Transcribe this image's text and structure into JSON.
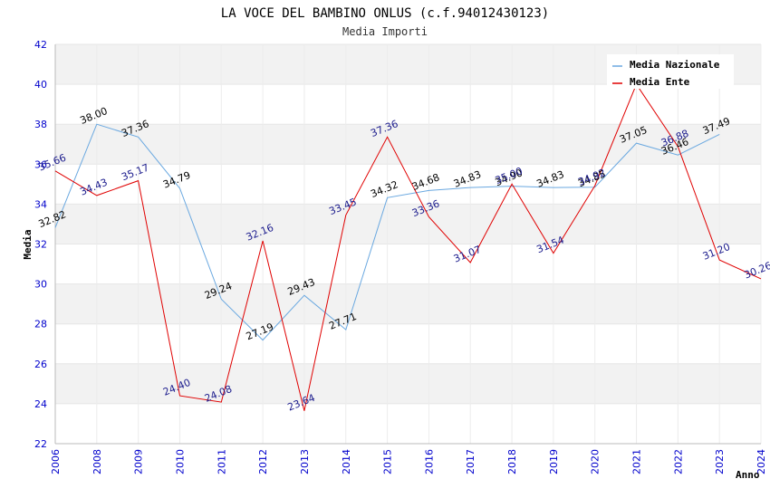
{
  "chart_data": {
    "type": "line",
    "title": "LA VOCE DEL BAMBINO ONLUS (c.f.94012430123)",
    "subtitle": "Media Importi",
    "xlabel": "Anno",
    "ylabel": "Media",
    "ylim": [
      22,
      42
    ],
    "yticks": [
      "22",
      "24",
      "26",
      "28",
      "30",
      "32",
      "34",
      "36",
      "38",
      "40",
      "42"
    ],
    "categories": [
      "2006",
      "2008",
      "2009",
      "2010",
      "2011",
      "2012",
      "2013",
      "2014",
      "2015",
      "2016",
      "2017",
      "2018",
      "2019",
      "2020",
      "2021",
      "2022",
      "2023",
      "2024"
    ],
    "legend_position": "top-right",
    "series": [
      {
        "name": "Media Nazionale",
        "color": "#6aa8e0",
        "values": [
          32.82,
          38.0,
          37.36,
          34.79,
          29.24,
          27.19,
          29.43,
          27.71,
          34.32,
          34.68,
          34.83,
          34.9,
          34.83,
          34.85,
          37.05,
          36.46,
          37.49,
          null
        ],
        "labels": [
          "32.82",
          "38.00",
          "37.36",
          "34.79",
          "29.24",
          "27.19",
          "29.43",
          "27.71",
          "34.32",
          "34.68",
          "34.83",
          "34.90",
          "34.83",
          "34.85",
          "37.05",
          "36.46",
          "37.49",
          ""
        ]
      },
      {
        "name": "Media Ente",
        "color": "#e00000",
        "values": [
          35.66,
          34.43,
          35.17,
          24.4,
          24.08,
          32.16,
          23.64,
          33.45,
          37.36,
          33.36,
          31.07,
          35.0,
          31.54,
          34.92,
          40.0,
          36.88,
          31.2,
          30.26
        ],
        "labels": [
          "35.66",
          "34.43",
          "35.17",
          "24.40",
          "24.08",
          "32.16",
          "23.64",
          "33.45",
          "37.36",
          "33.36",
          "31.07",
          "35.00",
          "31.54",
          "34.92",
          "",
          "36.88",
          "31.20",
          "30.26"
        ]
      }
    ]
  }
}
